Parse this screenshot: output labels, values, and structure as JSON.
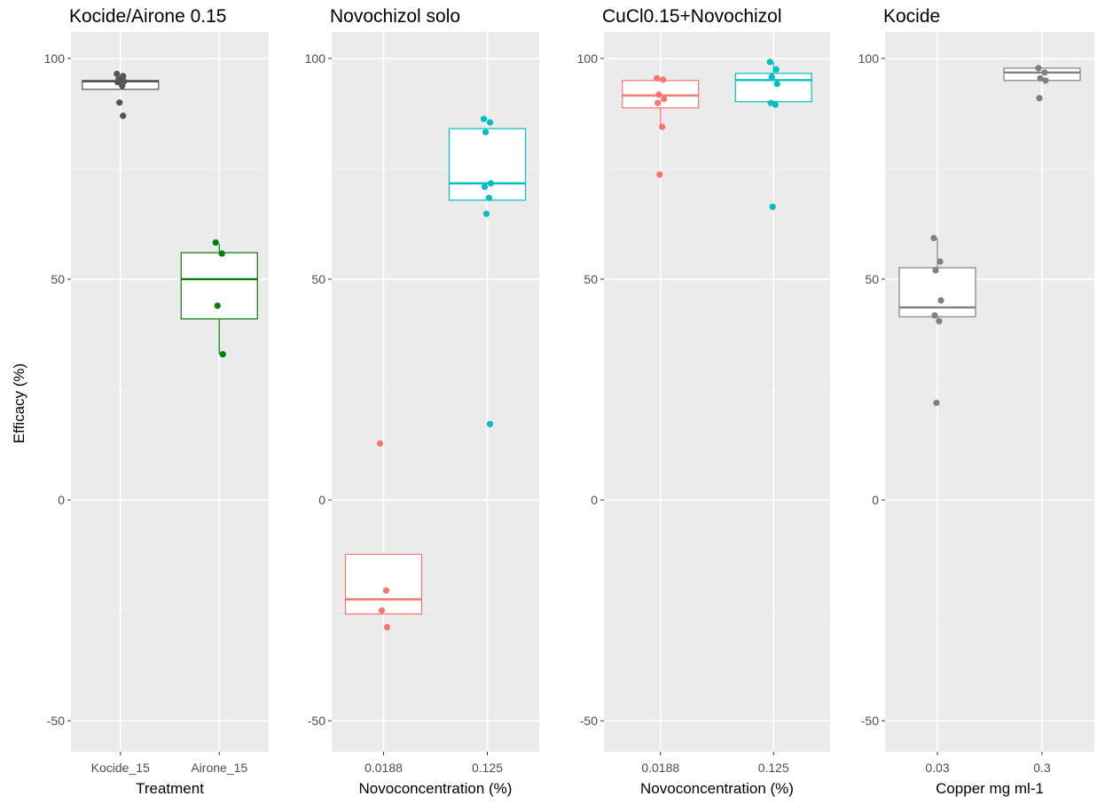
{
  "figure": {
    "ylabel": "Efficacy (%)"
  },
  "chart_data": [
    {
      "type": "box",
      "title": "Kocide/Airone 0.15",
      "xlabel": "Treatment",
      "ylabel": "Efficacy (%)",
      "ylim": [
        -57,
        106
      ],
      "yticks": [
        -50,
        0,
        50,
        100
      ],
      "grid": true,
      "categories": [
        "Kocide_15",
        "Airone_15"
      ],
      "series": [
        {
          "category": "Kocide_15",
          "color": "#555555",
          "q1": 93,
          "median": 94.8,
          "q3": 95,
          "whisker_low": 93,
          "whisker_high": 95,
          "points": [
            96.5,
            96,
            95.3,
            94.8,
            94.6,
            93.8,
            90,
            87
          ]
        },
        {
          "category": "Airone_15",
          "color": "#008000",
          "q1": 41,
          "median": 50,
          "q3": 56,
          "whisker_low": 33,
          "whisker_high": 58,
          "points": [
            58.3,
            55.8,
            44,
            33
          ]
        }
      ]
    },
    {
      "type": "box",
      "title": "Novochizol solo",
      "xlabel": "Novoconcentration (%)",
      "ylabel": "",
      "ylim": [
        -57,
        106
      ],
      "yticks": [
        -50,
        0,
        50,
        100
      ],
      "grid": true,
      "categories": [
        "0.0188",
        "0.125"
      ],
      "series": [
        {
          "category": "0.0188",
          "color": "#F8766D",
          "q1": -25.8,
          "median": -22.5,
          "q3": -12.3,
          "whisker_low": -25.8,
          "whisker_high": -12.3,
          "points": [
            12.8,
            -20.5,
            -25,
            -28.8
          ]
        },
        {
          "category": "0.125",
          "color": "#00BFC4",
          "q1": 67.9,
          "median": 71.7,
          "q3": 84.1,
          "whisker_low": 67.9,
          "whisker_high": 84.1,
          "points": [
            86.3,
            85.5,
            83.3,
            71.7,
            70.9,
            68.4,
            64.8,
            17.2
          ]
        }
      ]
    },
    {
      "type": "box",
      "title": "CuCl0.15+Novochizol",
      "xlabel": "Novoconcentration (%)",
      "ylabel": "",
      "ylim": [
        -57,
        106
      ],
      "yticks": [
        -50,
        0,
        50,
        100
      ],
      "grid": true,
      "categories": [
        "0.0188",
        "0.125"
      ],
      "series": [
        {
          "category": "0.0188",
          "color": "#F8766D",
          "q1": 88.8,
          "median": 91.6,
          "q3": 95,
          "whisker_low": 84.5,
          "whisker_high": 95,
          "points": [
            95.5,
            95.2,
            91.8,
            90.8,
            89.9,
            84.5,
            73.7
          ]
        },
        {
          "category": "0.125",
          "color": "#00BFC4",
          "q1": 90.2,
          "median": 95.1,
          "q3": 96.6,
          "whisker_low": 89.5,
          "whisker_high": 99.2,
          "points": [
            99.2,
            97.5,
            95.8,
            94.2,
            89.9,
            89.5,
            66.4
          ]
        }
      ]
    },
    {
      "type": "box",
      "title": "Kocide",
      "xlabel": "Copper mg ml-1",
      "ylabel": "",
      "ylim": [
        -57,
        106
      ],
      "yticks": [
        -50,
        0,
        50,
        100
      ],
      "grid": true,
      "categories": [
        "0.03",
        "0.3"
      ],
      "series": [
        {
          "category": "0.03",
          "color": "#808080",
          "q1": 41.5,
          "median": 43.6,
          "q3": 52.6,
          "whisker_low": 40.5,
          "whisker_high": 59.3,
          "points": [
            59.3,
            54,
            52,
            45.2,
            41.8,
            40.5,
            22
          ]
        },
        {
          "category": "0.3",
          "color": "#808080",
          "q1": 95,
          "median": 96.8,
          "q3": 97.8,
          "whisker_low": 95,
          "whisker_high": 97.8,
          "points": [
            97.8,
            96.8,
            95.5,
            95,
            91
          ]
        }
      ]
    }
  ]
}
